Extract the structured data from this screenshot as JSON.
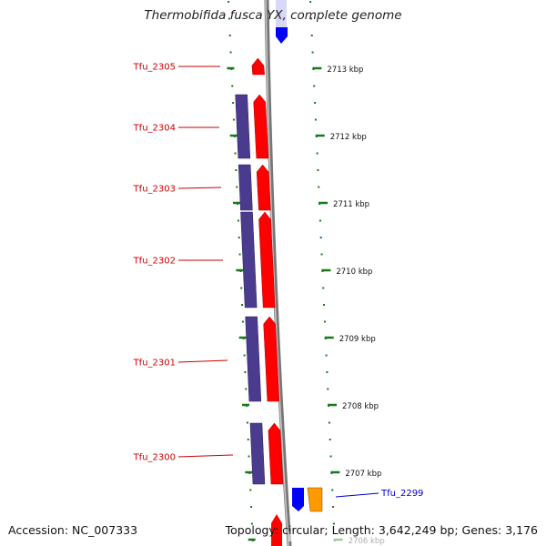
{
  "title": "Thermobifida fusca YX, complete genome",
  "footer": {
    "accession": "Accession: NC_007333",
    "summary": "Topology: circular; Length: 3,642,249 bp; Genes: 3,176"
  },
  "colors": {
    "forward_cds": "#ff0000",
    "reverse_cds": "#0000ff",
    "reverse_other": "#ff9900",
    "orf_track": "#4b3b8f",
    "tick": "#1a7a1a",
    "backbone": "#8c8c8c",
    "label_forward": "#cc0000",
    "label_reverse": "#0000cc"
  },
  "genes": [
    {
      "id": "Tfu_2305",
      "strand": "forward"
    },
    {
      "id": "Tfu_2304",
      "strand": "forward"
    },
    {
      "id": "Tfu_2303",
      "strand": "forward"
    },
    {
      "id": "Tfu_2302",
      "strand": "forward"
    },
    {
      "id": "Tfu_2301",
      "strand": "forward"
    },
    {
      "id": "Tfu_2300",
      "strand": "forward"
    },
    {
      "id": "Tfu_2299",
      "strand": "reverse"
    }
  ],
  "scale_labels": [
    "2713 kbp",
    "2712 kbp",
    "2711 kbp",
    "2710 kbp",
    "2709 kbp",
    "2708 kbp",
    "2707 kbp",
    "2706 kbp"
  ]
}
